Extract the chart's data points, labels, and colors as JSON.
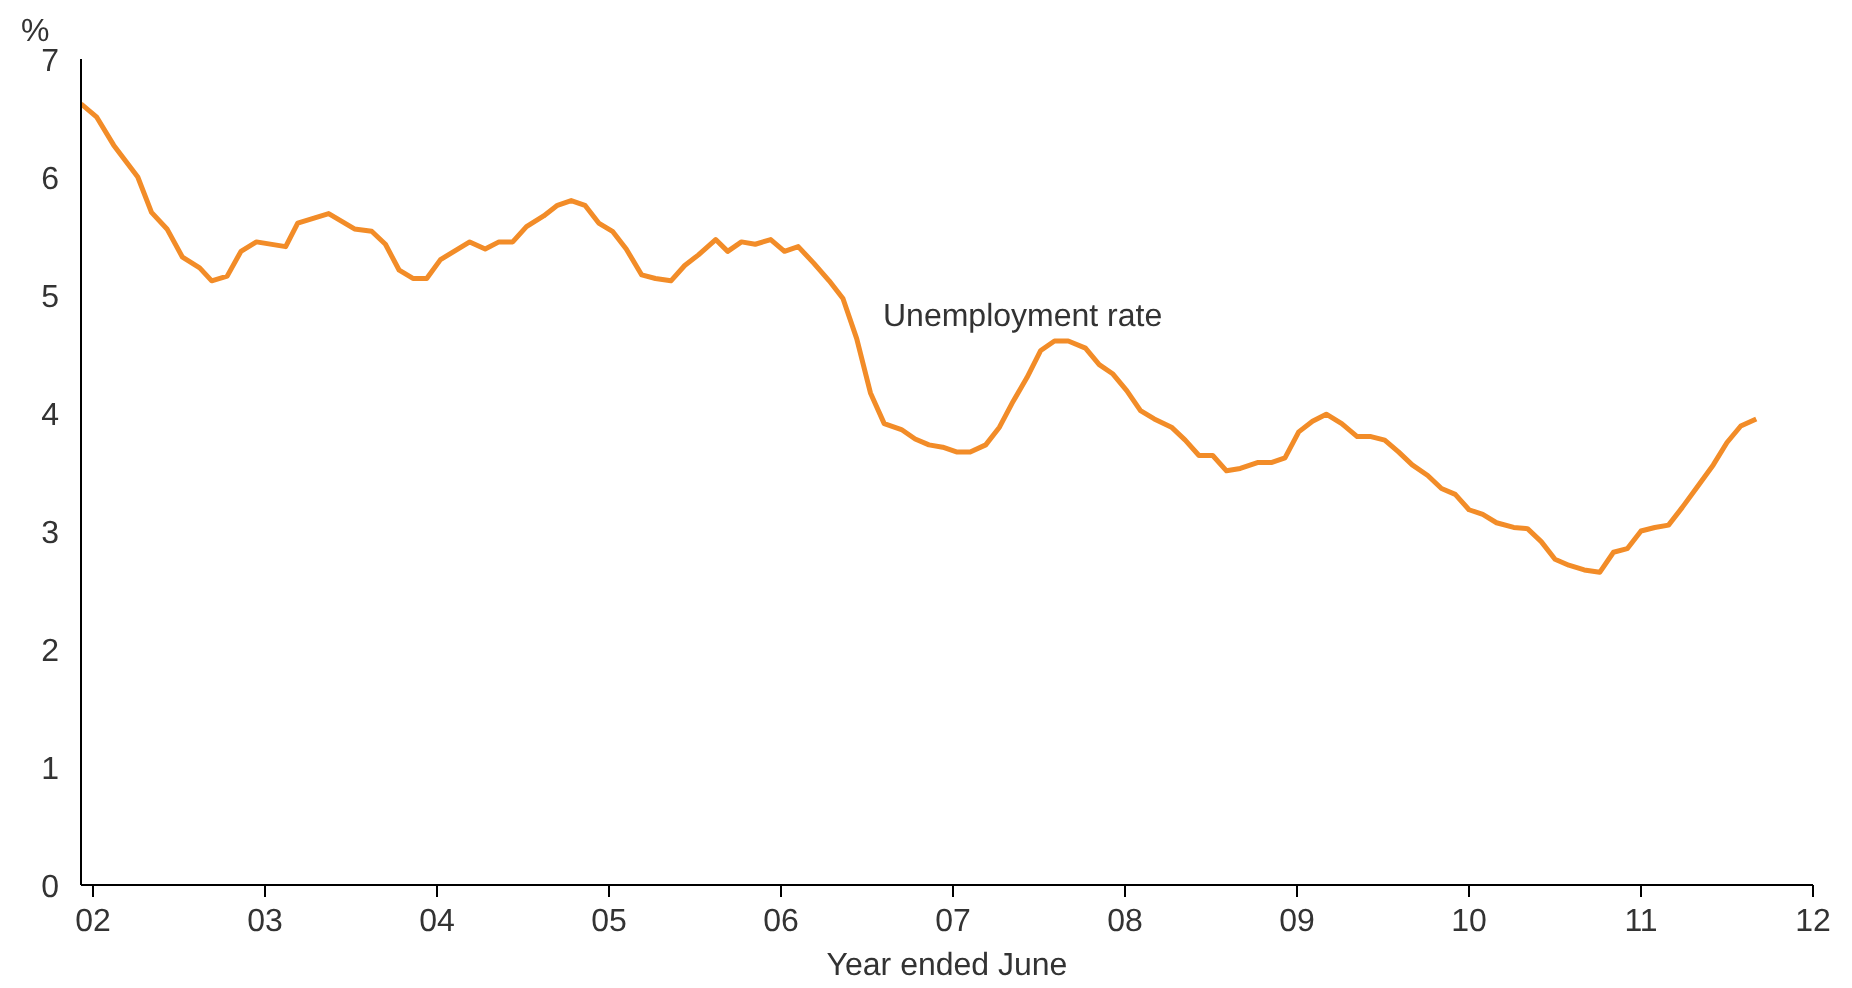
{
  "chart_data": {
    "type": "line",
    "xlabel": "Year ended June",
    "ylabel": "%",
    "xlim": [
      2001.93,
      2012
    ],
    "ylim": [
      0,
      7
    ],
    "xticks": [
      {
        "value": 2002,
        "label": "02"
      },
      {
        "value": 2003,
        "label": "03"
      },
      {
        "value": 2004,
        "label": "04"
      },
      {
        "value": 2005,
        "label": "05"
      },
      {
        "value": 2006,
        "label": "06"
      },
      {
        "value": 2007,
        "label": "07"
      },
      {
        "value": 2008,
        "label": "08"
      },
      {
        "value": 2009,
        "label": "09"
      },
      {
        "value": 2010,
        "label": "10"
      },
      {
        "value": 2011,
        "label": "11"
      },
      {
        "value": 2012,
        "label": "12"
      }
    ],
    "yticks": [
      0,
      1,
      2,
      3,
      4,
      5,
      6,
      7
    ],
    "marker": "none",
    "line_style": "solid",
    "annotations": [
      "Unemployment rate"
    ],
    "series": [
      {
        "color": "#f28c28",
        "x": [
          2001.93,
          2002.02,
          2002.12,
          2002.26,
          2002.34,
          2002.43,
          2002.52,
          2002.62,
          2002.69,
          2002.78,
          2002.86,
          2002.95,
          2003.12,
          2003.19,
          2003.28,
          2003.37,
          2003.52,
          2003.62,
          2003.7,
          2003.78,
          2003.86,
          2003.94,
          2004.02,
          2004.19,
          2004.28,
          2004.36,
          2004.44,
          2004.52,
          2004.62,
          2004.7,
          2004.78,
          2004.86,
          2004.94,
          2005.02,
          2005.1,
          2005.19,
          2005.27,
          2005.36,
          2005.44,
          2005.52,
          2005.62,
          2005.69,
          2005.77,
          2005.85,
          2005.94,
          2006.02,
          2006.1,
          2006.19,
          2006.28,
          2006.36,
          2006.44,
          2006.52,
          2006.6,
          2006.7,
          2006.78,
          2006.86,
          2006.94,
          2007.02,
          2007.1,
          2007.19,
          2007.27,
          2007.35,
          2007.43,
          2007.51,
          2007.59,
          2007.67,
          2007.77,
          2007.85,
          2007.93,
          2008.01,
          2008.09,
          2008.17,
          2008.27,
          2008.35,
          2008.43,
          2008.51,
          2008.59,
          2008.67,
          2008.77,
          2008.85,
          2008.93,
          2009.01,
          2009.09,
          2009.17,
          2009.26,
          2009.35,
          2009.43,
          2009.51,
          2009.59,
          2009.67,
          2009.76,
          2009.84,
          2009.92,
          2010.0,
          2010.08,
          2010.16,
          2010.26,
          2010.34,
          2010.42,
          2010.5,
          2010.58,
          2010.67,
          2010.76,
          2010.84,
          2010.92,
          2011.0,
          2011.08,
          2011.16,
          2011.24,
          2011.33,
          2011.42,
          2011.5,
          2011.58,
          2011.67
        ],
        "values": [
          6.62,
          6.51,
          6.27,
          6.0,
          5.7,
          5.56,
          5.32,
          5.23,
          5.12,
          5.16,
          5.37,
          5.45,
          5.41,
          5.61,
          5.65,
          5.69,
          5.56,
          5.54,
          5.43,
          5.21,
          5.14,
          5.14,
          5.3,
          5.45,
          5.39,
          5.45,
          5.45,
          5.58,
          5.67,
          5.76,
          5.8,
          5.76,
          5.61,
          5.54,
          5.39,
          5.17,
          5.14,
          5.12,
          5.25,
          5.34,
          5.47,
          5.37,
          5.45,
          5.43,
          5.47,
          5.37,
          5.41,
          5.27,
          5.12,
          4.97,
          4.63,
          4.17,
          3.91,
          3.86,
          3.78,
          3.73,
          3.71,
          3.67,
          3.67,
          3.73,
          3.88,
          4.1,
          4.3,
          4.53,
          4.61,
          4.61,
          4.55,
          4.41,
          4.33,
          4.19,
          4.02,
          3.95,
          3.88,
          3.77,
          3.64,
          3.64,
          3.51,
          3.53,
          3.58,
          3.58,
          3.62,
          3.84,
          3.93,
          3.99,
          3.91,
          3.8,
          3.8,
          3.77,
          3.67,
          3.56,
          3.47,
          3.36,
          3.31,
          3.18,
          3.14,
          3.07,
          3.03,
          3.02,
          2.91,
          2.76,
          2.71,
          2.67,
          2.65,
          2.82,
          2.85,
          3.0,
          3.03,
          3.05,
          3.2,
          3.38,
          3.56,
          3.75,
          3.89,
          3.95
        ]
      }
    ]
  }
}
